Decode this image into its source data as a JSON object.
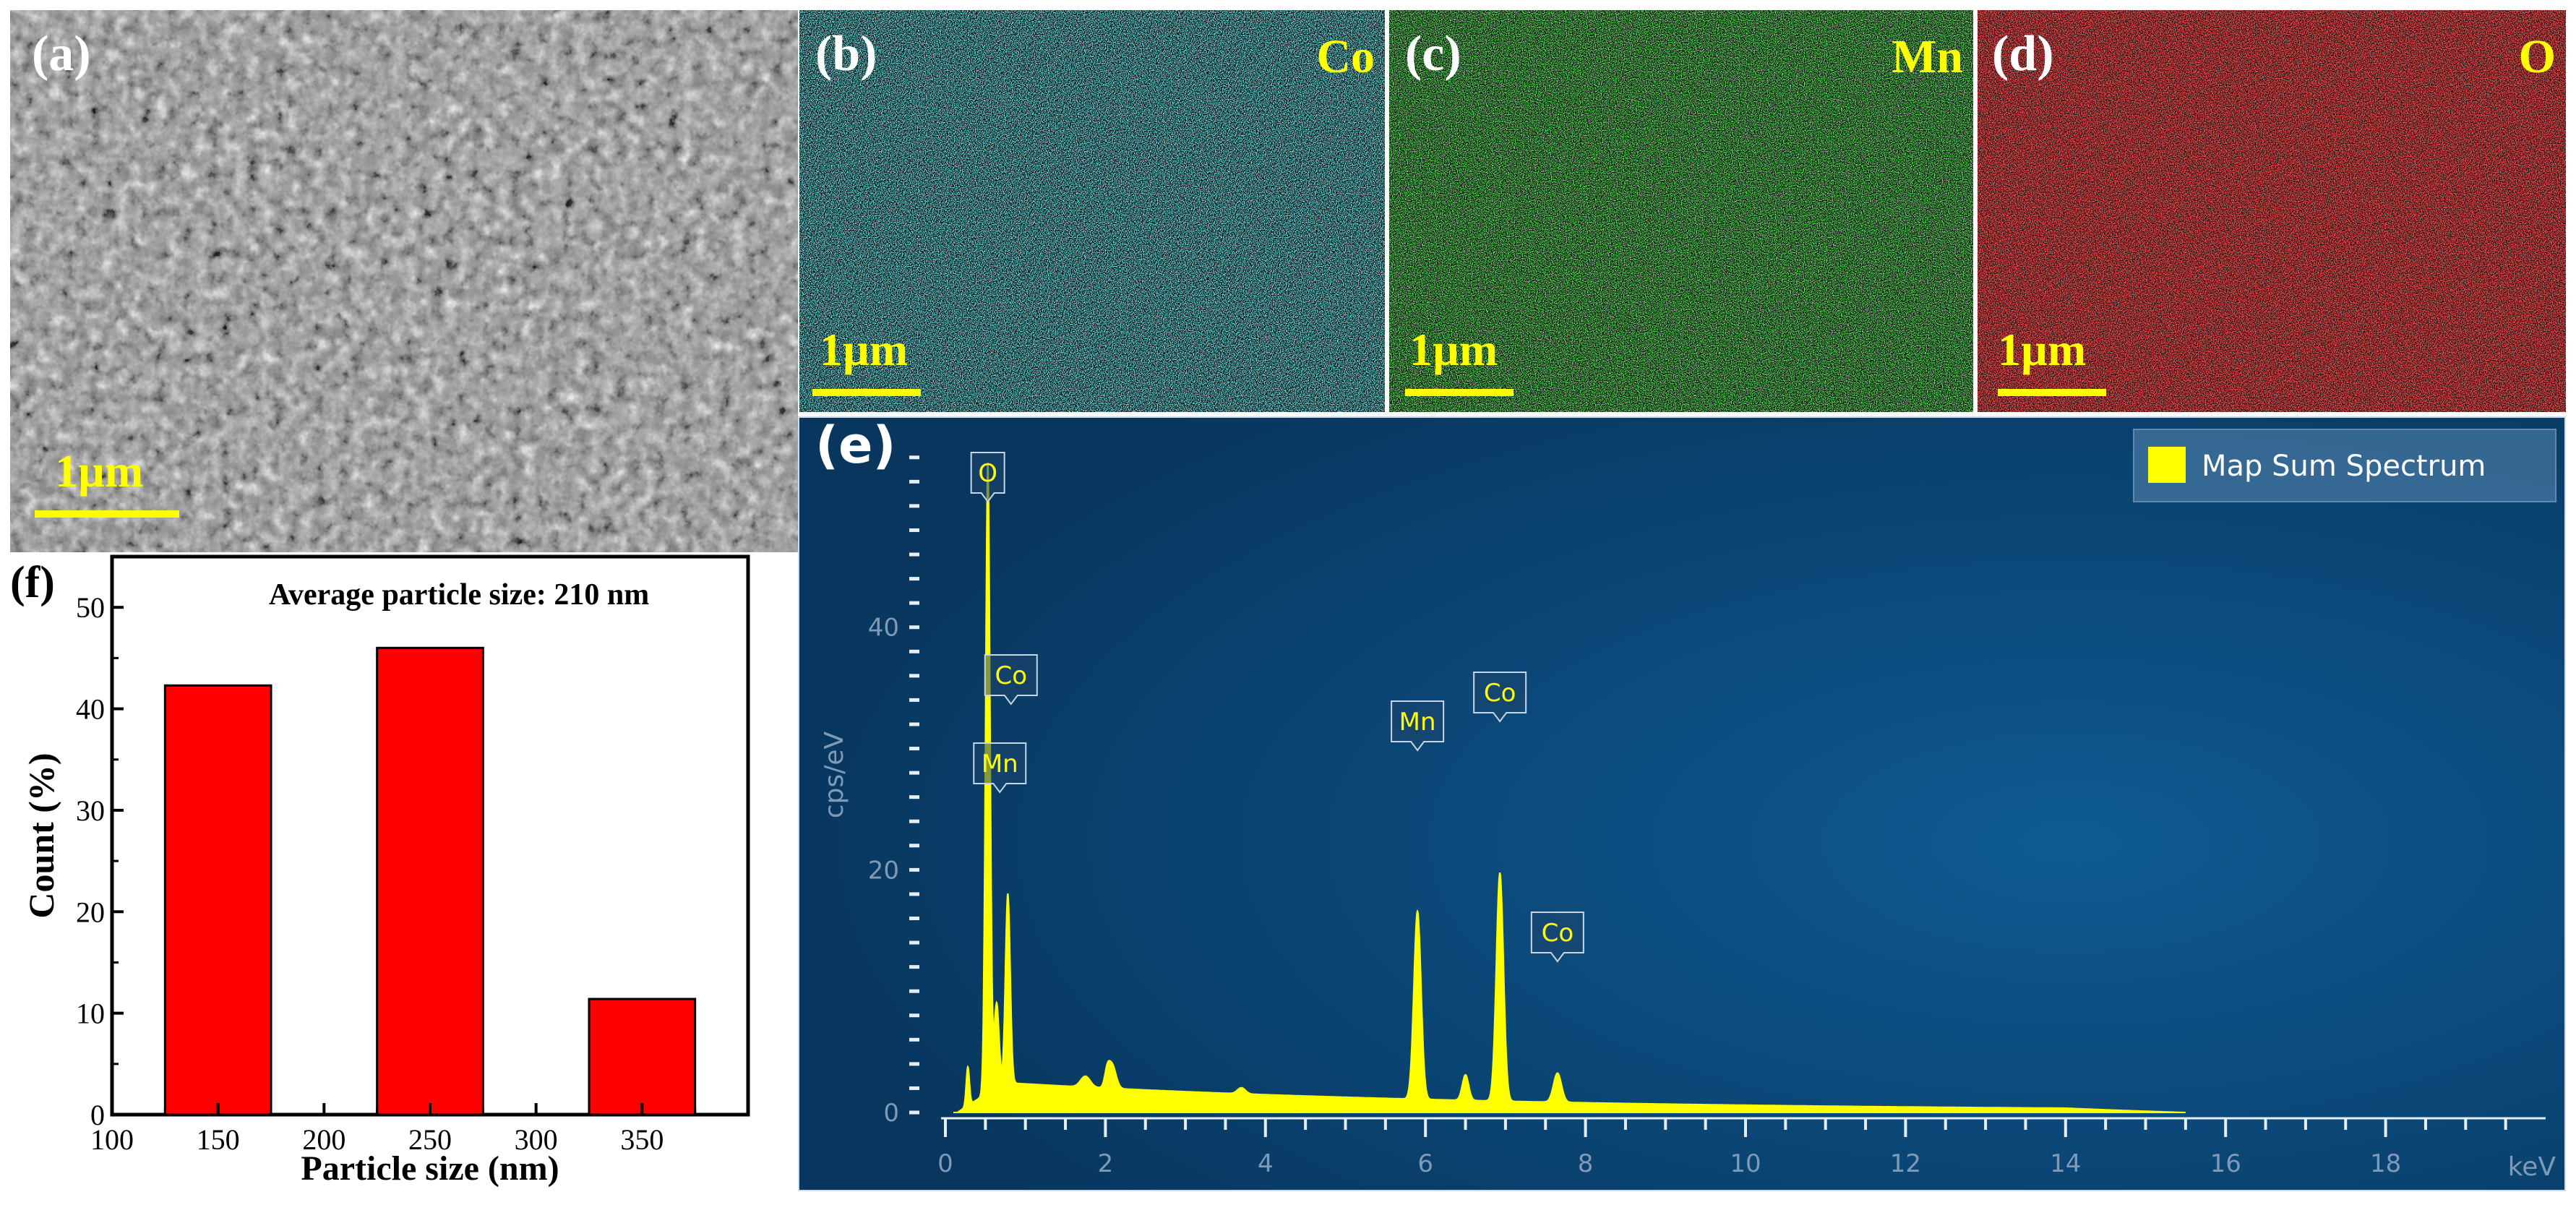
{
  "panels": {
    "a": {
      "label": "(a)",
      "scale": "1µm"
    },
    "b": {
      "label": "(b)",
      "element": "Co",
      "scale": "1µm",
      "color": "#2fd6e0"
    },
    "c": {
      "label": "(c)",
      "element": "Mn",
      "scale": "1µm",
      "color": "#22d022"
    },
    "d": {
      "label": "(d)",
      "element": "O",
      "scale": "1µm",
      "color": "#e01414"
    },
    "e": {
      "label": "(e)"
    },
    "f": {
      "label": "(f)"
    }
  },
  "colors": {
    "highlight": "#ffff00",
    "eds_bg": "#0b4677",
    "bar_fill": "#ff0000"
  },
  "chart_data": [
    {
      "type": "bar",
      "panel": "f",
      "title": "Average particle size: 210 nm",
      "xlabel": "Particle size (nm)",
      "ylabel": "Count (%)",
      "categories": [
        "150",
        "250",
        "350"
      ],
      "x": [
        150,
        250,
        350
      ],
      "values": [
        42.3,
        46.0,
        11.4
      ],
      "xlim": [
        100,
        400
      ],
      "ylim": [
        0,
        55
      ],
      "xticks": [
        "100",
        "150",
        "200",
        "250",
        "300",
        "350"
      ],
      "yticks": [
        "0",
        "10",
        "20",
        "30",
        "40",
        "50"
      ],
      "grid": false
    },
    {
      "type": "line",
      "panel": "e",
      "legend": "Map Sum Spectrum",
      "legend_position": "top-right",
      "xlabel": "keV",
      "ylabel": "cps/eV",
      "xlim": [
        0,
        20
      ],
      "ylim": [
        0,
        55
      ],
      "xticks": [
        "0",
        "2",
        "4",
        "6",
        "8",
        "10",
        "12",
        "14",
        "16",
        "18"
      ],
      "yticks": [
        "0",
        "20",
        "40"
      ],
      "peaks": [
        {
          "label": "O",
          "x": 0.53,
          "y": 52
        },
        {
          "label": "Co",
          "x": 0.78,
          "y": 16
        },
        {
          "label": "Mn",
          "x": 0.64,
          "y": 8
        },
        {
          "label": "Mn",
          "x": 5.9,
          "y": 15.5
        },
        {
          "label": "Co",
          "x": 6.93,
          "y": 19
        },
        {
          "label": "Co",
          "x": 7.65,
          "y": 2.8
        }
      ]
    }
  ]
}
